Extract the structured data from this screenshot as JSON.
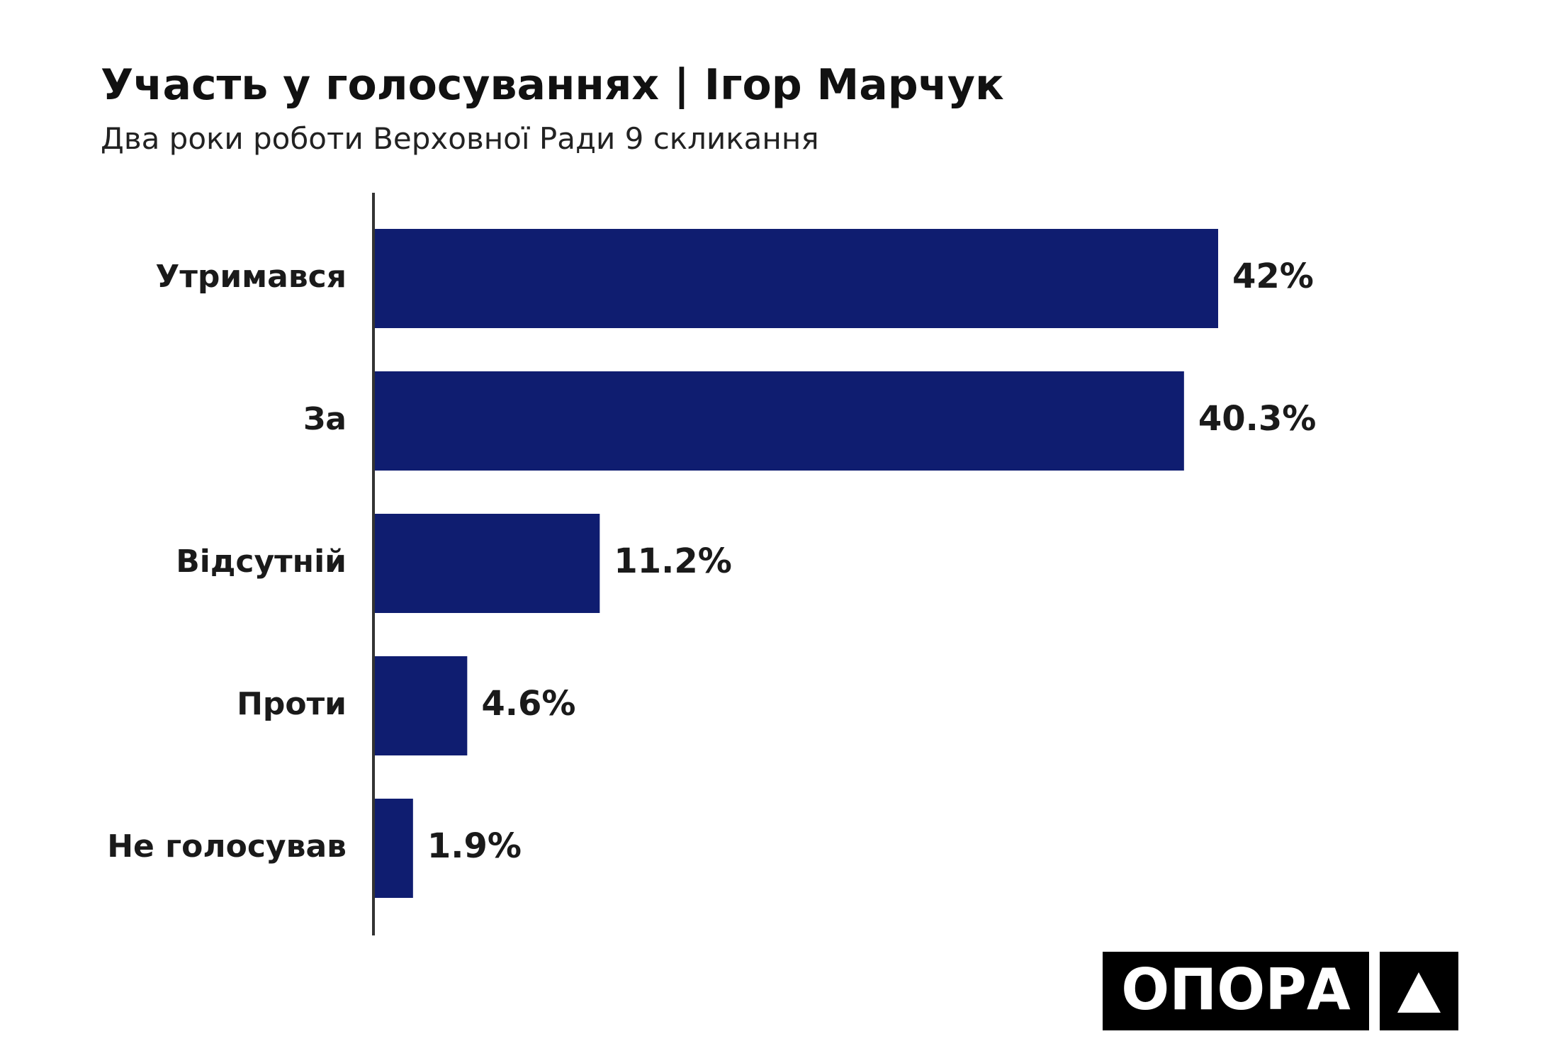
{
  "chart_data": {
    "type": "bar",
    "orientation": "horizontal",
    "title": "Участь у голосуваннях | Ігор Марчук",
    "subtitle": "Два роки роботи Верховної Ради 9 скликання",
    "categories": [
      "Утримався",
      "За",
      "Відсутній",
      "Проти",
      "Не голосував"
    ],
    "values": [
      42,
      40.3,
      11.2,
      4.6,
      1.9
    ],
    "value_labels": [
      "42%",
      "40.3%",
      "11.2%",
      "4.6%",
      "1.9%"
    ],
    "color": "#0f1d70"
  },
  "logo": {
    "text": "ОПОРА"
  }
}
